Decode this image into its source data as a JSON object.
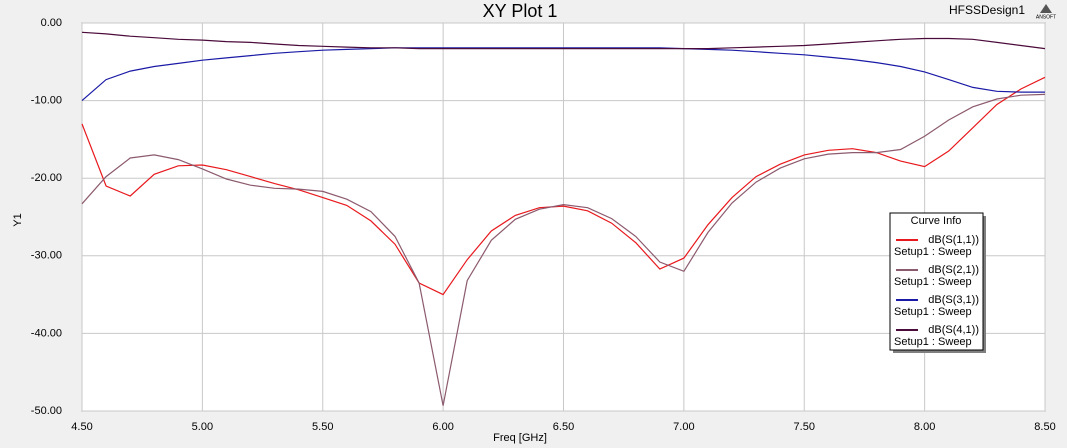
{
  "chart_data": {
    "type": "line",
    "title": "XY Plot 1",
    "design": "HFSSDesign1",
    "logo": "ANSOFT",
    "xlabel": "Freq [GHz]",
    "ylabel": "Y1",
    "grid": true,
    "legend_title": "Curve Info",
    "legend_position": "right",
    "x": [
      4.5,
      4.6,
      4.7,
      4.8,
      4.9,
      5.0,
      5.1,
      5.2,
      5.3,
      5.4,
      5.5,
      5.6,
      5.7,
      5.8,
      5.9,
      6.0,
      6.1,
      6.2,
      6.3,
      6.4,
      6.5,
      6.6,
      6.7,
      6.8,
      6.9,
      7.0,
      7.1,
      7.2,
      7.3,
      7.4,
      7.5,
      7.6,
      7.7,
      7.8,
      7.9,
      8.0,
      8.1,
      8.2,
      8.3,
      8.4,
      8.5
    ],
    "xlim": [
      4.5,
      8.5
    ],
    "xticks": [
      {
        "value": 4.5,
        "label": "4.50"
      },
      {
        "value": 5.0,
        "label": "5.00"
      },
      {
        "value": 5.5,
        "label": "5.50"
      },
      {
        "value": 6.0,
        "label": "6.00"
      },
      {
        "value": 6.5,
        "label": "6.50"
      },
      {
        "value": 7.0,
        "label": "7.00"
      },
      {
        "value": 7.5,
        "label": "7.50"
      },
      {
        "value": 8.0,
        "label": "8.00"
      },
      {
        "value": 8.5,
        "label": "8.50"
      }
    ],
    "ylim": [
      -50,
      0
    ],
    "yticks": [
      {
        "value": 0,
        "label": "0.00"
      },
      {
        "value": -10,
        "label": "-10.00"
      },
      {
        "value": -20,
        "label": "-20.00"
      },
      {
        "value": -30,
        "label": "-30.00"
      },
      {
        "value": -40,
        "label": "-40.00"
      },
      {
        "value": -50,
        "label": "-50.00"
      }
    ],
    "series": [
      {
        "name": "dB(S(1,1))",
        "setup": "Setup1 : Sweep",
        "color": "#e8191d",
        "values": [
          -13,
          -21,
          -22.3,
          -19.5,
          -18.4,
          -18.3,
          -18.9,
          -19.8,
          -20.7,
          -21.5,
          -22.5,
          -23.5,
          -25.5,
          -28.5,
          -33.5,
          -35,
          -30.5,
          -26.8,
          -24.8,
          -23.8,
          -23.6,
          -24.2,
          -25.8,
          -28.3,
          -31.7,
          -30.3,
          -26,
          -22.5,
          -19.8,
          -18.2,
          -17,
          -16.4,
          -16.2,
          -16.7,
          -17.8,
          -18.5,
          -16.5,
          -13.5,
          -10.5,
          -8.5,
          -7
        ]
      },
      {
        "name": "dB(S(2,1))",
        "setup": "Setup1 : Sweep",
        "color": "#8c5a6e",
        "values": [
          -23.3,
          -19.8,
          -17.4,
          -17,
          -17.6,
          -18.8,
          -20.1,
          -20.9,
          -21.3,
          -21.4,
          -21.7,
          -22.7,
          -24.3,
          -27.5,
          -33.5,
          -49.3,
          -33.2,
          -28,
          -25.3,
          -24,
          -23.4,
          -23.8,
          -25.2,
          -27.5,
          -30.8,
          -32,
          -27,
          -23.2,
          -20.5,
          -18.7,
          -17.5,
          -16.9,
          -16.7,
          -16.7,
          -16.3,
          -14.6,
          -12.5,
          -10.8,
          -9.8,
          -9.3,
          -9.2
        ]
      },
      {
        "name": "dB(S(3,1))",
        "setup": "Setup1 : Sweep",
        "color": "#1a1aa6",
        "values": [
          -10,
          -7.3,
          -6.2,
          -5.6,
          -5.2,
          -4.8,
          -4.5,
          -4.2,
          -3.9,
          -3.7,
          -3.5,
          -3.4,
          -3.3,
          -3.2,
          -3.2,
          -3.2,
          -3.2,
          -3.2,
          -3.2,
          -3.2,
          -3.2,
          -3.2,
          -3.2,
          -3.2,
          -3.2,
          -3.3,
          -3.4,
          -3.5,
          -3.7,
          -3.9,
          -4.1,
          -4.4,
          -4.7,
          -5.1,
          -5.6,
          -6.3,
          -7.3,
          -8.3,
          -8.8,
          -8.9,
          -8.9
        ]
      },
      {
        "name": "dB(S(4,1))",
        "setup": "Setup1 : Sweep",
        "color": "#4a0a3a",
        "values": [
          -1.2,
          -1.4,
          -1.7,
          -1.9,
          -2.1,
          -2.2,
          -2.4,
          -2.5,
          -2.7,
          -2.9,
          -3.0,
          -3.1,
          -3.2,
          -3.2,
          -3.3,
          -3.3,
          -3.3,
          -3.3,
          -3.3,
          -3.3,
          -3.3,
          -3.3,
          -3.3,
          -3.3,
          -3.3,
          -3.3,
          -3.3,
          -3.2,
          -3.1,
          -3.0,
          -2.9,
          -2.7,
          -2.5,
          -2.3,
          -2.1,
          -2.0,
          -2.0,
          -2.1,
          -2.5,
          -2.9,
          -3.3
        ]
      }
    ]
  }
}
